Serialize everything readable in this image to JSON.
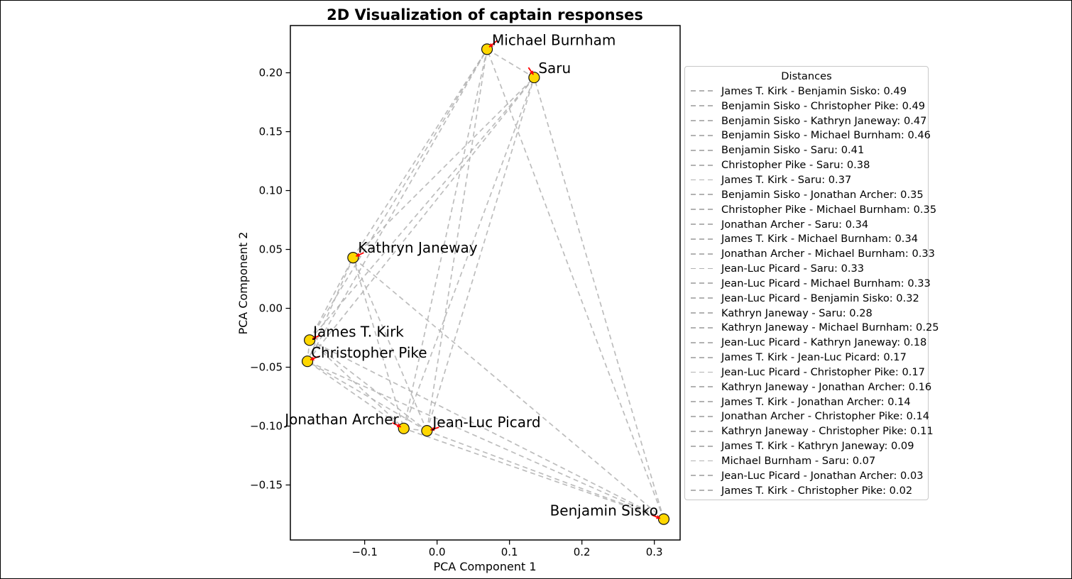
{
  "chart_data": {
    "type": "scatter",
    "title": "2D Visualization of captain responses",
    "xlabel": "PCA Component 1",
    "ylabel": "PCA Component 2",
    "xlim": [
      -0.2026,
      0.3356
    ],
    "ylim": [
      -0.1967,
      0.2401
    ],
    "grid": false,
    "xticks": {
      "values": [
        -0.1,
        0.0,
        0.1,
        0.2,
        0.3
      ],
      "labels": [
        "−0.1",
        "0.0",
        "0.1",
        "0.2",
        "0.3"
      ]
    },
    "yticks": {
      "values": [
        -0.15,
        -0.1,
        -0.05,
        0.0,
        0.05,
        0.1,
        0.15,
        0.2
      ],
      "labels": [
        "−0.15",
        "−0.10",
        "−0.05",
        "0.00",
        "0.05",
        "0.10",
        "0.15",
        "0.20"
      ]
    },
    "point_style": {
      "fill": "#FFD700",
      "edge": "#111111",
      "radius": 7.5
    },
    "arrow_color": "#FF0000",
    "line_color": "#b2b2b2",
    "points": [
      {
        "name": "Michael Burnham",
        "x": 0.069,
        "y": 0.22,
        "label_offset": [
          7,
          -6
        ],
        "label_anchor": "start",
        "arrow_from": [
          14,
          -12
        ],
        "arrow_to": [
          3,
          -3
        ]
      },
      {
        "name": "Saru",
        "x": 0.134,
        "y": 0.196,
        "label_offset": [
          6,
          -6
        ],
        "label_anchor": "start",
        "arrow_from": [
          -8,
          -14
        ],
        "arrow_to": [
          -1,
          -4
        ]
      },
      {
        "name": "Kathryn Janeway",
        "x": -0.116,
        "y": 0.043,
        "label_offset": [
          7,
          -7
        ],
        "label_anchor": "start",
        "arrow_from": [
          15,
          -7
        ],
        "arrow_to": [
          4,
          -2
        ]
      },
      {
        "name": "James T. Kirk",
        "x": -0.176,
        "y": -0.027,
        "label_offset": [
          5,
          -5
        ],
        "label_anchor": "start",
        "arrow_from": [
          15,
          -7
        ],
        "arrow_to": [
          4,
          -2
        ]
      },
      {
        "name": "Christopher Pike",
        "x": -0.179,
        "y": -0.045,
        "label_offset": [
          5,
          -5
        ],
        "label_anchor": "start",
        "arrow_from": [
          16,
          -7
        ],
        "arrow_to": [
          4,
          -2
        ]
      },
      {
        "name": "Jonathan Archer",
        "x": -0.046,
        "y": -0.102,
        "label_offset": [
          -7,
          -6
        ],
        "label_anchor": "end",
        "arrow_from": [
          -16,
          -8
        ],
        "arrow_to": [
          -4,
          -2
        ]
      },
      {
        "name": "Jean-Luc Picard",
        "x": -0.014,
        "y": -0.104,
        "label_offset": [
          8,
          -5
        ],
        "label_anchor": "start",
        "arrow_from": [
          17,
          -5
        ],
        "arrow_to": [
          5,
          -1
        ]
      },
      {
        "name": "Benjamin Sisko",
        "x": 0.313,
        "y": -0.179,
        "label_offset": [
          -8,
          -5
        ],
        "label_anchor": "end",
        "arrow_from": [
          -17,
          -6
        ],
        "arrow_to": [
          -5,
          -1
        ]
      }
    ],
    "legend_title": "Distances",
    "edges": [
      {
        "a": "James T. Kirk",
        "b": "Benjamin Sisko",
        "distance": 0.49
      },
      {
        "a": "Benjamin Sisko",
        "b": "Christopher Pike",
        "distance": 0.49
      },
      {
        "a": "Benjamin Sisko",
        "b": "Kathryn Janeway",
        "distance": 0.47
      },
      {
        "a": "Benjamin Sisko",
        "b": "Michael Burnham",
        "distance": 0.46
      },
      {
        "a": "Benjamin Sisko",
        "b": "Saru",
        "distance": 0.41
      },
      {
        "a": "Christopher Pike",
        "b": "Saru",
        "distance": 0.38
      },
      {
        "a": "James T. Kirk",
        "b": "Saru",
        "distance": 0.37
      },
      {
        "a": "Benjamin Sisko",
        "b": "Jonathan Archer",
        "distance": 0.35
      },
      {
        "a": "Christopher Pike",
        "b": "Michael Burnham",
        "distance": 0.35
      },
      {
        "a": "Jonathan Archer",
        "b": "Saru",
        "distance": 0.34
      },
      {
        "a": "James T. Kirk",
        "b": "Michael Burnham",
        "distance": 0.34
      },
      {
        "a": "Jonathan Archer",
        "b": "Michael Burnham",
        "distance": 0.33
      },
      {
        "a": "Jean-Luc Picard",
        "b": "Saru",
        "distance": 0.33
      },
      {
        "a": "Jean-Luc Picard",
        "b": "Michael Burnham",
        "distance": 0.33
      },
      {
        "a": "Jean-Luc Picard",
        "b": "Benjamin Sisko",
        "distance": 0.32
      },
      {
        "a": "Kathryn Janeway",
        "b": "Saru",
        "distance": 0.28
      },
      {
        "a": "Kathryn Janeway",
        "b": "Michael Burnham",
        "distance": 0.25
      },
      {
        "a": "Jean-Luc Picard",
        "b": "Kathryn Janeway",
        "distance": 0.18
      },
      {
        "a": "James T. Kirk",
        "b": "Jean-Luc Picard",
        "distance": 0.17
      },
      {
        "a": "Jean-Luc Picard",
        "b": "Christopher Pike",
        "distance": 0.17
      },
      {
        "a": "Kathryn Janeway",
        "b": "Jonathan Archer",
        "distance": 0.16
      },
      {
        "a": "James T. Kirk",
        "b": "Jonathan Archer",
        "distance": 0.14
      },
      {
        "a": "Jonathan Archer",
        "b": "Christopher Pike",
        "distance": 0.14
      },
      {
        "a": "Kathryn Janeway",
        "b": "Christopher Pike",
        "distance": 0.11
      },
      {
        "a": "James T. Kirk",
        "b": "Kathryn Janeway",
        "distance": 0.09
      },
      {
        "a": "Michael Burnham",
        "b": "Saru",
        "distance": 0.07
      },
      {
        "a": "Jean-Luc Picard",
        "b": "Jonathan Archer",
        "distance": 0.03
      },
      {
        "a": "James T. Kirk",
        "b": "Christopher Pike",
        "distance": 0.02
      }
    ]
  }
}
